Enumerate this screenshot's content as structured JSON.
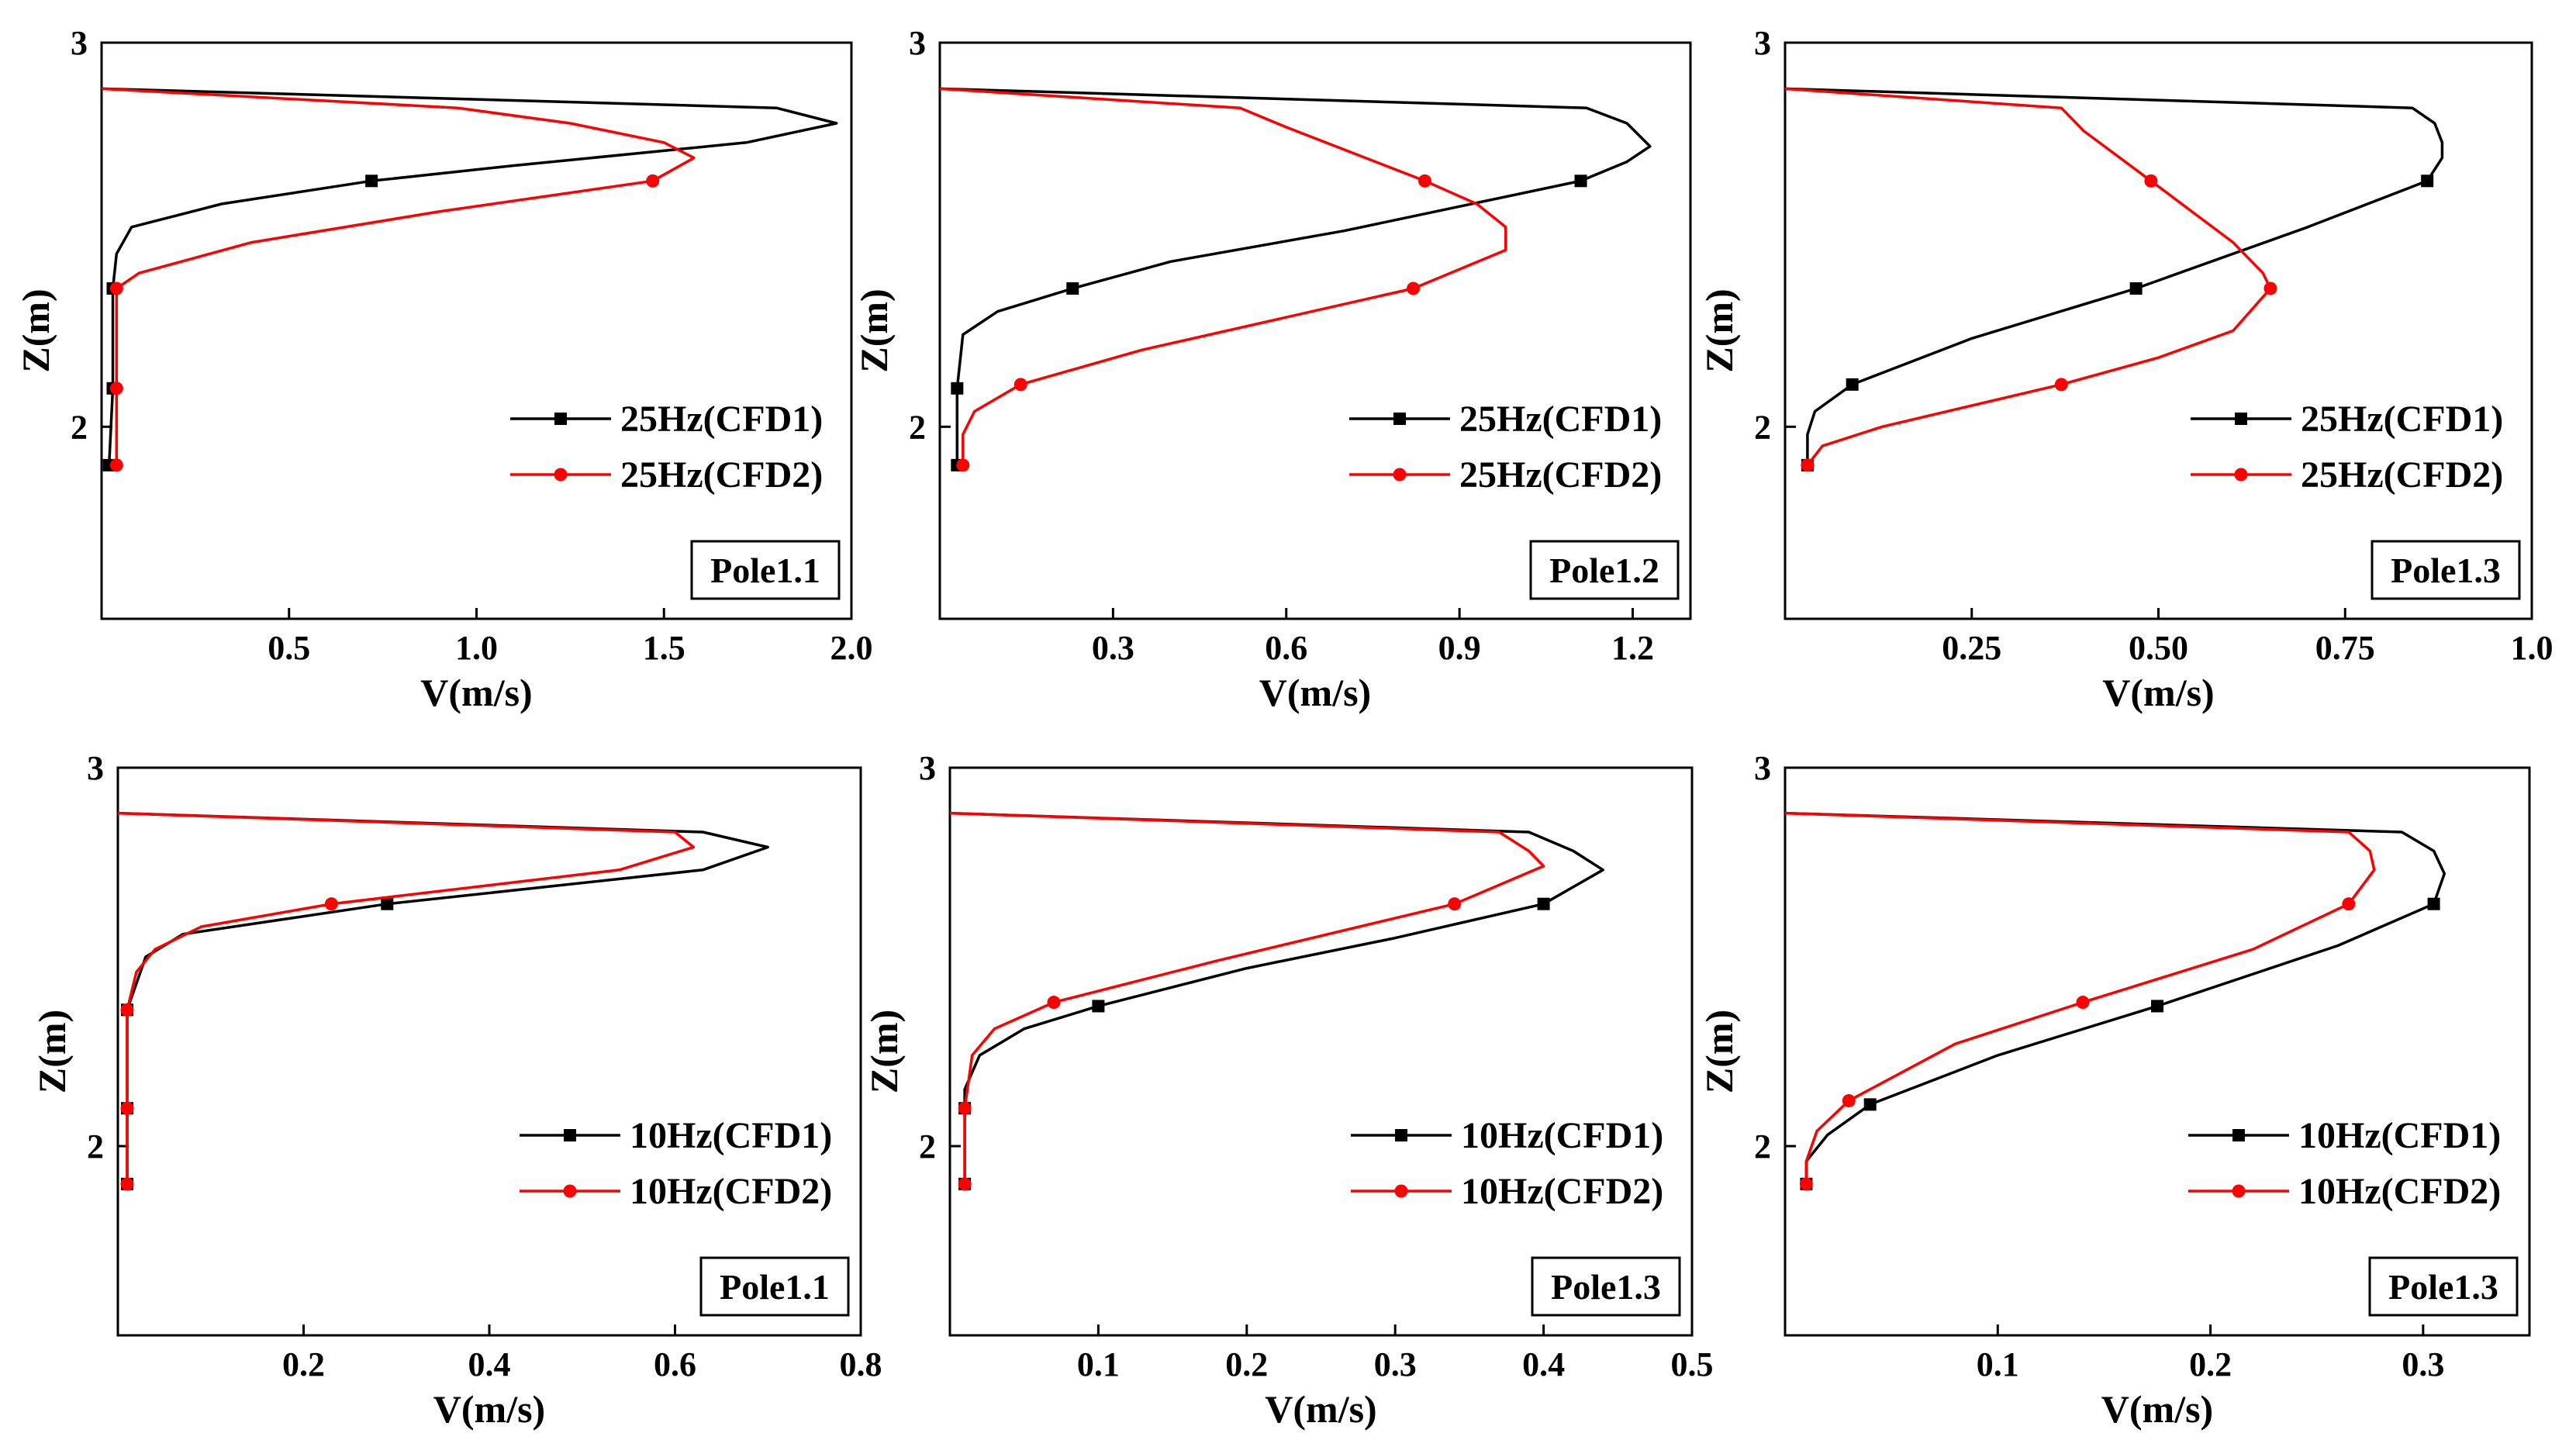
{
  "colors": {
    "CFD1": "#000000",
    "CFD2": "#ff0000"
  },
  "chart_data": [
    {
      "type": "line",
      "tag": "Pole1.1",
      "xlabel": "V(m/s)",
      "ylabel": "Z(m)",
      "xlim": [
        0.0,
        2.0
      ],
      "ylim": [
        1.5,
        3.0
      ],
      "xticks": [
        0.5,
        1.0,
        1.5,
        2.0
      ],
      "xtick_labels": [
        "0.5",
        "1.0",
        "1.5",
        "2.0"
      ],
      "yticks": [
        2,
        3
      ],
      "ytick_labels": [
        "2",
        "3"
      ],
      "legend_position": "lower-right",
      "series": [
        {
          "name": "25Hz(CFD1)",
          "color": "#000000",
          "marker": "square",
          "points": [
            [
              0.0,
              2.88
            ],
            [
              1.8,
              2.83
            ],
            [
              1.96,
              2.79
            ],
            [
              1.72,
              2.74
            ],
            [
              1.1,
              2.68
            ],
            [
              0.72,
              2.64
            ],
            [
              0.32,
              2.58
            ],
            [
              0.08,
              2.52
            ],
            [
              0.04,
              2.45
            ],
            [
              0.03,
              2.36
            ],
            [
              0.03,
              2.1
            ],
            [
              0.02,
              1.9
            ]
          ],
          "marker_points": [
            [
              0.72,
              2.64
            ],
            [
              0.03,
              2.36
            ],
            [
              0.03,
              2.1
            ],
            [
              0.02,
              1.9
            ]
          ]
        },
        {
          "name": "25Hz(CFD2)",
          "color": "#ff0000",
          "marker": "circle",
          "points": [
            [
              0.0,
              2.88
            ],
            [
              0.95,
              2.83
            ],
            [
              1.25,
              2.79
            ],
            [
              1.5,
              2.74
            ],
            [
              1.58,
              2.7
            ],
            [
              1.47,
              2.64
            ],
            [
              0.9,
              2.56
            ],
            [
              0.4,
              2.48
            ],
            [
              0.1,
              2.4
            ],
            [
              0.04,
              2.36
            ],
            [
              0.04,
              2.1
            ],
            [
              0.04,
              1.9
            ]
          ],
          "marker_points": [
            [
              1.47,
              2.64
            ],
            [
              0.04,
              2.36
            ],
            [
              0.04,
              2.1
            ],
            [
              0.04,
              1.9
            ]
          ]
        }
      ]
    },
    {
      "type": "line",
      "tag": "Pole1.2",
      "xlabel": "V(m/s)",
      "ylabel": "Z(m)",
      "xlim": [
        0.0,
        1.3
      ],
      "ylim": [
        1.5,
        3.0
      ],
      "xticks": [
        0.3,
        0.6,
        0.9,
        1.2
      ],
      "xtick_labels": [
        "0.3",
        "0.6",
        "0.9",
        "1.2"
      ],
      "yticks": [
        2,
        3
      ],
      "ytick_labels": [
        "2",
        "3"
      ],
      "legend_position": "lower-right",
      "series": [
        {
          "name": "25Hz(CFD1)",
          "color": "#000000",
          "marker": "square",
          "points": [
            [
              0.0,
              2.88
            ],
            [
              1.12,
              2.83
            ],
            [
              1.19,
              2.79
            ],
            [
              1.23,
              2.73
            ],
            [
              1.19,
              2.69
            ],
            [
              1.11,
              2.64
            ],
            [
              0.7,
              2.51
            ],
            [
              0.4,
              2.43
            ],
            [
              0.23,
              2.36
            ],
            [
              0.1,
              2.3
            ],
            [
              0.04,
              2.24
            ],
            [
              0.03,
              2.1
            ],
            [
              0.03,
              1.9
            ]
          ],
          "marker_points": [
            [
              1.11,
              2.64
            ],
            [
              0.23,
              2.36
            ],
            [
              0.03,
              2.1
            ],
            [
              0.03,
              1.9
            ]
          ]
        },
        {
          "name": "25Hz(CFD2)",
          "color": "#ff0000",
          "marker": "circle",
          "points": [
            [
              0.0,
              2.88
            ],
            [
              0.52,
              2.83
            ],
            [
              0.6,
              2.78
            ],
            [
              0.84,
              2.64
            ],
            [
              0.93,
              2.58
            ],
            [
              0.98,
              2.52
            ],
            [
              0.98,
              2.46
            ],
            [
              0.9,
              2.41
            ],
            [
              0.82,
              2.36
            ],
            [
              0.35,
              2.2
            ],
            [
              0.14,
              2.11
            ],
            [
              0.06,
              2.04
            ],
            [
              0.04,
              1.98
            ],
            [
              0.04,
              1.9
            ]
          ],
          "marker_points": [
            [
              0.84,
              2.64
            ],
            [
              0.82,
              2.36
            ],
            [
              0.14,
              2.11
            ],
            [
              0.04,
              1.9
            ]
          ]
        }
      ]
    },
    {
      "type": "line",
      "tag": "Pole1.3",
      "xlabel": "V(m/s)",
      "ylabel": "Z(m)",
      "xlim": [
        0.0,
        1.0
      ],
      "ylim": [
        1.5,
        3.0
      ],
      "xticks": [
        0.25,
        0.5,
        0.75,
        1.0
      ],
      "xtick_labels": [
        "0.25",
        "0.50",
        "0.75",
        "1.0"
      ],
      "yticks": [
        2,
        3
      ],
      "ytick_labels": [
        "2",
        "3"
      ],
      "legend_position": "lower-right",
      "series": [
        {
          "name": "25Hz(CFD1)",
          "color": "#000000",
          "marker": "square",
          "points": [
            [
              0.0,
              2.88
            ],
            [
              0.84,
              2.83
            ],
            [
              0.87,
              2.79
            ],
            [
              0.88,
              2.74
            ],
            [
              0.88,
              2.7
            ],
            [
              0.86,
              2.64
            ],
            [
              0.7,
              2.52
            ],
            [
              0.47,
              2.36
            ],
            [
              0.25,
              2.23
            ],
            [
              0.09,
              2.11
            ],
            [
              0.04,
              2.04
            ],
            [
              0.03,
              1.98
            ],
            [
              0.03,
              1.9
            ]
          ],
          "marker_points": [
            [
              0.86,
              2.64
            ],
            [
              0.47,
              2.36
            ],
            [
              0.09,
              2.11
            ],
            [
              0.03,
              1.9
            ]
          ]
        },
        {
          "name": "25Hz(CFD2)",
          "color": "#ff0000",
          "marker": "circle",
          "points": [
            [
              0.0,
              2.88
            ],
            [
              0.37,
              2.83
            ],
            [
              0.4,
              2.77
            ],
            [
              0.49,
              2.64
            ],
            [
              0.6,
              2.48
            ],
            [
              0.64,
              2.4
            ],
            [
              0.65,
              2.36
            ],
            [
              0.6,
              2.25
            ],
            [
              0.5,
              2.18
            ],
            [
              0.37,
              2.11
            ],
            [
              0.13,
              2.0
            ],
            [
              0.05,
              1.95
            ],
            [
              0.03,
              1.9
            ]
          ],
          "marker_points": [
            [
              0.49,
              2.64
            ],
            [
              0.65,
              2.36
            ],
            [
              0.37,
              2.11
            ],
            [
              0.03,
              1.9
            ]
          ]
        }
      ]
    },
    {
      "type": "line",
      "tag": "Pole1.1",
      "xlabel": "V(m/s)",
      "ylabel": "Z(m)",
      "xlim": [
        0.0,
        0.8
      ],
      "ylim": [
        1.5,
        3.0
      ],
      "xticks": [
        0.2,
        0.4,
        0.6,
        0.8
      ],
      "xtick_labels": [
        "0.2",
        "0.4",
        "0.6",
        "0.8"
      ],
      "yticks": [
        2,
        3
      ],
      "ytick_labels": [
        "2",
        "3"
      ],
      "legend_position": "lower-right",
      "series": [
        {
          "name": "10Hz(CFD1)",
          "color": "#000000",
          "marker": "square",
          "points": [
            [
              0.0,
              2.88
            ],
            [
              0.63,
              2.83
            ],
            [
              0.7,
              2.79
            ],
            [
              0.63,
              2.73
            ],
            [
              0.29,
              2.64
            ],
            [
              0.07,
              2.56
            ],
            [
              0.03,
              2.5
            ],
            [
              0.01,
              2.36
            ],
            [
              0.01,
              2.1
            ],
            [
              0.01,
              1.9
            ]
          ],
          "marker_points": [
            [
              0.29,
              2.64
            ],
            [
              0.01,
              2.36
            ],
            [
              0.01,
              2.1
            ],
            [
              0.01,
              1.9
            ]
          ]
        },
        {
          "name": "10Hz(CFD2)",
          "color": "#ff0000",
          "marker": "circle",
          "points": [
            [
              0.0,
              2.88
            ],
            [
              0.6,
              2.83
            ],
            [
              0.62,
              2.79
            ],
            [
              0.54,
              2.73
            ],
            [
              0.23,
              2.64
            ],
            [
              0.09,
              2.58
            ],
            [
              0.04,
              2.52
            ],
            [
              0.02,
              2.46
            ],
            [
              0.01,
              2.36
            ],
            [
              0.01,
              2.1
            ],
            [
              0.01,
              1.9
            ]
          ],
          "marker_points": [
            [
              0.23,
              2.64
            ],
            [
              0.01,
              2.36
            ],
            [
              0.01,
              2.1
            ],
            [
              0.01,
              1.9
            ]
          ]
        }
      ]
    },
    {
      "type": "line",
      "tag": "Pole1.3",
      "xlabel": "V(m/s)",
      "ylabel": "Z(m)",
      "xlim": [
        0.0,
        0.5
      ],
      "ylim": [
        1.5,
        3.0
      ],
      "xticks": [
        0.1,
        0.2,
        0.3,
        0.4,
        0.5
      ],
      "xtick_labels": [
        "0.1",
        "0.2",
        "0.3",
        "0.4",
        "0.5"
      ],
      "yticks": [
        2,
        3
      ],
      "ytick_labels": [
        "2",
        "3"
      ],
      "legend_position": "lower-right",
      "series": [
        {
          "name": "10Hz(CFD1)",
          "color": "#000000",
          "marker": "square",
          "points": [
            [
              0.0,
              2.88
            ],
            [
              0.39,
              2.83
            ],
            [
              0.42,
              2.78
            ],
            [
              0.44,
              2.73
            ],
            [
              0.4,
              2.64
            ],
            [
              0.3,
              2.55
            ],
            [
              0.2,
              2.47
            ],
            [
              0.1,
              2.37
            ],
            [
              0.05,
              2.31
            ],
            [
              0.02,
              2.24
            ],
            [
              0.01,
              2.15
            ],
            [
              0.01,
              2.1
            ],
            [
              0.01,
              1.9
            ]
          ],
          "marker_points": [
            [
              0.4,
              2.64
            ],
            [
              0.1,
              2.37
            ],
            [
              0.01,
              2.1
            ],
            [
              0.01,
              1.9
            ]
          ]
        },
        {
          "name": "10Hz(CFD2)",
          "color": "#ff0000",
          "marker": "circle",
          "points": [
            [
              0.0,
              2.88
            ],
            [
              0.37,
              2.83
            ],
            [
              0.39,
              2.78
            ],
            [
              0.4,
              2.74
            ],
            [
              0.34,
              2.64
            ],
            [
              0.18,
              2.49
            ],
            [
              0.07,
              2.38
            ],
            [
              0.03,
              2.31
            ],
            [
              0.015,
              2.24
            ],
            [
              0.01,
              2.1
            ],
            [
              0.01,
              1.9
            ]
          ],
          "marker_points": [
            [
              0.34,
              2.64
            ],
            [
              0.07,
              2.38
            ],
            [
              0.01,
              2.1
            ],
            [
              0.01,
              1.9
            ]
          ]
        }
      ]
    },
    {
      "type": "line",
      "tag": "Pole1.3",
      "xlabel": "V(m/s)",
      "ylabel": "Z(m)",
      "xlim": [
        0.0,
        0.35
      ],
      "ylim": [
        1.5,
        3.0
      ],
      "xticks": [
        0.1,
        0.2,
        0.3
      ],
      "xtick_labels": [
        "0.1",
        "0.2",
        "0.3"
      ],
      "yticks": [
        2,
        3
      ],
      "ytick_labels": [
        "2",
        "3"
      ],
      "legend_position": "lower-right",
      "series": [
        {
          "name": "10Hz(CFD1)",
          "color": "#000000",
          "marker": "square",
          "points": [
            [
              0.0,
              2.88
            ],
            [
              0.29,
              2.83
            ],
            [
              0.305,
              2.78
            ],
            [
              0.31,
              2.72
            ],
            [
              0.305,
              2.64
            ],
            [
              0.26,
              2.53
            ],
            [
              0.175,
              2.37
            ],
            [
              0.1,
              2.24
            ],
            [
              0.04,
              2.11
            ],
            [
              0.02,
              2.03
            ],
            [
              0.01,
              1.96
            ],
            [
              0.01,
              1.9
            ]
          ],
          "marker_points": [
            [
              0.305,
              2.64
            ],
            [
              0.175,
              2.37
            ],
            [
              0.04,
              2.11
            ],
            [
              0.01,
              1.9
            ]
          ]
        },
        {
          "name": "10Hz(CFD2)",
          "color": "#ff0000",
          "marker": "circle",
          "points": [
            [
              0.0,
              2.88
            ],
            [
              0.265,
              2.83
            ],
            [
              0.275,
              2.78
            ],
            [
              0.277,
              2.73
            ],
            [
              0.265,
              2.64
            ],
            [
              0.22,
              2.52
            ],
            [
              0.14,
              2.38
            ],
            [
              0.08,
              2.27
            ],
            [
              0.03,
              2.12
            ],
            [
              0.015,
              2.04
            ],
            [
              0.01,
              1.96
            ],
            [
              0.01,
              1.9
            ]
          ],
          "marker_points": [
            [
              0.265,
              2.64
            ],
            [
              0.14,
              2.38
            ],
            [
              0.03,
              2.12
            ],
            [
              0.01,
              1.9
            ]
          ]
        }
      ]
    }
  ]
}
